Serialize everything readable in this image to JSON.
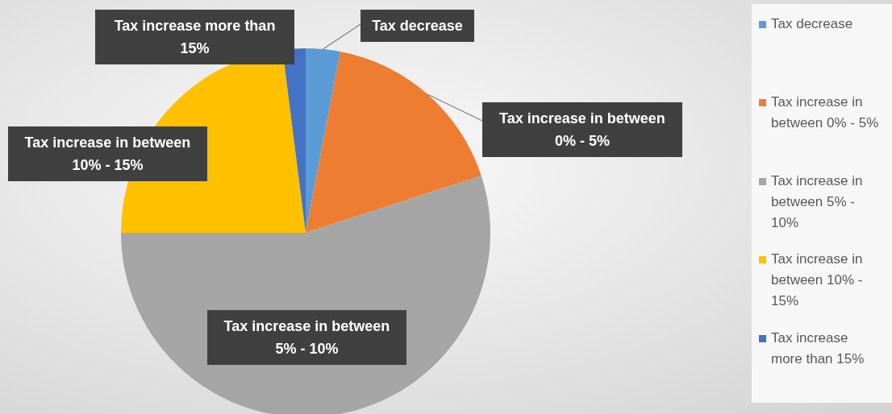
{
  "chart_data": {
    "type": "pie",
    "categories": [
      "Tax decrease",
      "Tax increase in between 0% - 5%",
      "Tax increase in between 5% - 10%",
      "Tax increase in between 10% - 15%",
      "Tax increase more than 15%"
    ],
    "values": [
      3,
      17,
      55,
      23,
      2
    ],
    "colors": [
      "#5b9bd5",
      "#ed7d31",
      "#a5a5a5",
      "#ffc000",
      "#4472c4"
    ],
    "legend": "right"
  }
}
